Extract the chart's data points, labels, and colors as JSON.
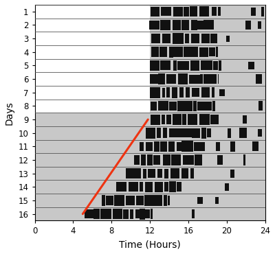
{
  "n_days": 16,
  "dd_start_day": 9,
  "activity_color": "#111111",
  "light_bg": "#ffffff",
  "dark_bg": "#c8c8c8",
  "line_color": "#ee3311",
  "red_line_x": [
    11.8,
    5.0
  ],
  "red_line_days": [
    9,
    16
  ],
  "xlabel": "Time (Hours)",
  "ylabel": "Days",
  "xticks": [
    0,
    4,
    8,
    12,
    16,
    20,
    24
  ],
  "yticks": [
    1,
    2,
    3,
    4,
    5,
    6,
    7,
    8,
    9,
    10,
    11,
    12,
    13,
    14,
    15,
    16
  ],
  "activity_seed": 7,
  "activity_start_ld": 12.0,
  "activity_onsets_dd": [
    12.0,
    11.5,
    11.0,
    10.3,
    9.5,
    8.5,
    7.0,
    5.2
  ],
  "activity_main_duration": 7.0,
  "figsize": [
    4.0,
    3.7
  ],
  "dpi": 100,
  "line_color_alpha": 1.0,
  "row_bar_fill": 0.82
}
